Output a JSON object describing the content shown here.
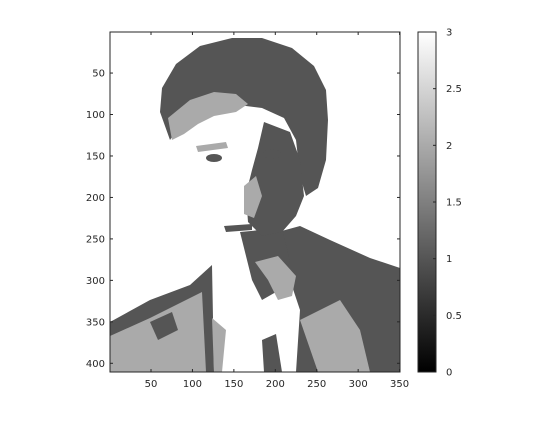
{
  "chart_data": {
    "type": "heatmap",
    "title": "",
    "xlabel": "",
    "ylabel": "",
    "xlim": [
      0.5,
      350.5
    ],
    "ylim": [
      0.5,
      410.5
    ],
    "y_reversed": true,
    "xticks": [
      50,
      100,
      150,
      200,
      250,
      300,
      350
    ],
    "yticks": [
      50,
      100,
      150,
      200,
      250,
      300,
      350,
      400
    ],
    "colormap": "gray",
    "levels": [
      0,
      1,
      2,
      3
    ],
    "level_colors": [
      "#000000",
      "#555555",
      "#aaaaaa",
      "#ffffff"
    ],
    "colorbar": {
      "clim": [
        0,
        3
      ],
      "ticks": [
        0,
        0.5,
        1,
        1.5,
        2,
        2.5,
        3
      ],
      "tick_labels": [
        "0",
        "0.5",
        "1",
        "1.5",
        "2",
        "2.5",
        "3"
      ],
      "location": "right"
    },
    "grid": false,
    "image_content": "quantized grayscale portrait of a man (4 gray levels)"
  }
}
